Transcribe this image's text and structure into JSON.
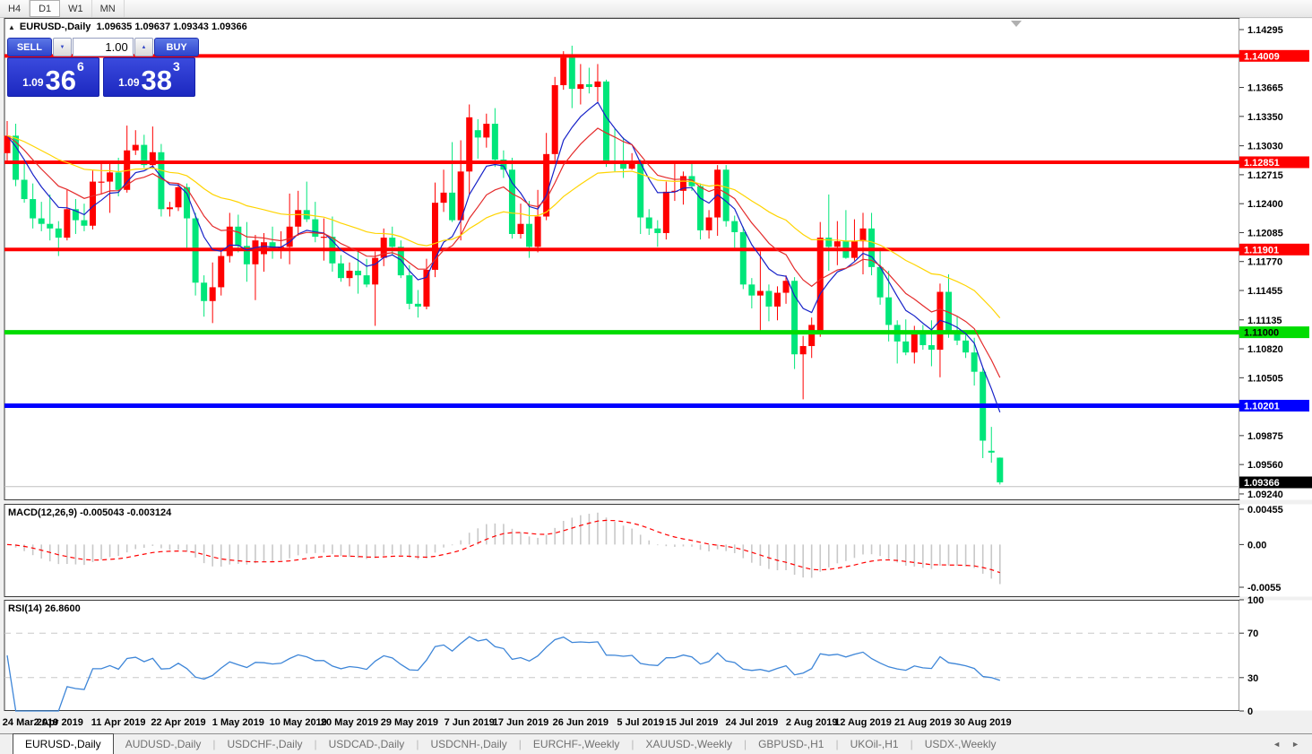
{
  "toolbar": {
    "buttons": [
      {
        "label": "H4",
        "active": false
      },
      {
        "label": "D1",
        "active": true
      },
      {
        "label": "W1",
        "active": false
      },
      {
        "label": "MN",
        "active": false
      }
    ]
  },
  "chart_header": {
    "collapse_icon": "▲",
    "title": "EURUSD-,Daily  1.09635 1.09637 1.09343 1.09366"
  },
  "trade_panel": {
    "sell_label": "SELL",
    "buy_label": "BUY",
    "volume": "1.00",
    "volume_down_glyph": "▼",
    "volume_up_glyph": "▲",
    "sell_price": {
      "big": "1.09",
      "pips": "36",
      "pipette": "6"
    },
    "buy_price": {
      "big": "1.09",
      "pips": "38",
      "pipette": "3"
    }
  },
  "indicators": {
    "macd_label": "MACD(12,26,9) -0.005043 -0.003124",
    "rsi_label": "RSI(14) 26.8600"
  },
  "tabs": {
    "items": [
      {
        "label": "EURUSD-,Daily",
        "active": true
      },
      {
        "label": "AUDUSD-,Daily",
        "active": false
      },
      {
        "label": "USDCHF-,Daily",
        "active": false
      },
      {
        "label": "USDCAD-,Daily",
        "active": false
      },
      {
        "label": "USDCNH-,Daily",
        "active": false
      },
      {
        "label": "EURCHF-,Weekly",
        "active": false
      },
      {
        "label": "XAUUSD-,Weekly",
        "active": false
      },
      {
        "label": "GBPUSD-,H1",
        "active": false
      },
      {
        "label": "UKOil-,H1",
        "active": false
      },
      {
        "label": "USDX-,Weekly",
        "active": false
      }
    ],
    "nav_left": "◄",
    "nav_right": "►"
  },
  "chart_data": {
    "type": "candlestick",
    "symbol": "EURUSD-",
    "period": "Daily",
    "title": "EURUSD-,Daily",
    "ohlc_current": {
      "open": 1.09635,
      "high": 1.09637,
      "low": 1.09343,
      "close": 1.09366
    },
    "price_axis": {
      "range": [
        1.09171,
        1.14422
      ],
      "current_price": "1.09366",
      "ticks": [
        "1.14295",
        "1.13665",
        "1.13350",
        "1.13030",
        "1.12715",
        "1.12400",
        "1.12085",
        "1.11770",
        "1.11455",
        "1.11135",
        "1.10820",
        "1.10505",
        "1.09875",
        "1.09560",
        "1.09240"
      ]
    },
    "hlines": [
      {
        "price": 1.14009,
        "label": "1.14009",
        "color": "#ff0000",
        "text": "#ffffff",
        "width": 4
      },
      {
        "price": 1.12851,
        "label": "1.12851",
        "color": "#ff0000",
        "text": "#ffffff",
        "width": 4
      },
      {
        "price": 1.11901,
        "label": "1.11901",
        "color": "#ff0000",
        "text": "#ffffff",
        "width": 4
      },
      {
        "price": 1.11,
        "label": "1.11000",
        "color": "#00dc00",
        "text": "#000000",
        "width": 5
      },
      {
        "price": 1.10201,
        "label": "1.10201",
        "color": "#0000ff",
        "text": "#ffffff",
        "width": 5
      },
      {
        "price": 1.0932,
        "label": null,
        "color": "#c0c0c0",
        "text": "#000000",
        "width": 1
      }
    ],
    "macd": {
      "params": [
        12,
        26,
        9
      ],
      "value": -0.005043,
      "signal": -0.003124,
      "ticks": [
        "0.00455",
        "0.00",
        "-0.0055"
      ],
      "range": [
        -0.00677,
        0.00524
      ]
    },
    "rsi": {
      "period": 14,
      "value": 26.86,
      "ticks": [
        "100",
        "70",
        "30",
        "0"
      ],
      "levels": [
        70,
        30
      ],
      "range": [
        0,
        100
      ]
    },
    "ma_lines": [
      {
        "period": 7,
        "color": "#1722c8"
      },
      {
        "period": 13,
        "color": "#e42b2b"
      },
      {
        "period": 34,
        "color": "#ffd400"
      }
    ],
    "colors": {
      "bull": "#ff0000",
      "bear": "#00e67a",
      "macd_bar": "#c8c8c8",
      "macd_signal": "#ff0000",
      "rsi_line": "#3e86d8",
      "level_dash": "#c8c8c8",
      "pane_border": "#3a3a3a"
    },
    "date_axis": [
      {
        "label": "24 Mar 2019",
        "i": 0
      },
      {
        "label": "2 Apr 2019",
        "i": 6
      },
      {
        "label": "11 Apr 2019",
        "i": 13
      },
      {
        "label": "22 Apr 2019",
        "i": 20
      },
      {
        "label": "1 May 2019",
        "i": 27
      },
      {
        "label": "10 May 2019",
        "i": 34
      },
      {
        "label": "20 May 2019",
        "i": 40
      },
      {
        "label": "29 May 2019",
        "i": 47
      },
      {
        "label": "7 Jun 2019",
        "i": 54
      },
      {
        "label": "17 Jun 2019",
        "i": 60
      },
      {
        "label": "26 Jun 2019",
        "i": 67
      },
      {
        "label": "5 Jul 2019",
        "i": 74
      },
      {
        "label": "15 Jul 2019",
        "i": 80
      },
      {
        "label": "24 Jul 2019",
        "i": 87
      },
      {
        "label": "2 Aug 2019",
        "i": 94
      },
      {
        "label": "12 Aug 2019",
        "i": 100
      },
      {
        "label": "21 Aug 2019",
        "i": 107
      },
      {
        "label": "30 Aug 2019",
        "i": 114
      }
    ],
    "candles": [
      [
        1.1295,
        1.133,
        1.1286,
        1.1314
      ],
      [
        1.1314,
        1.1327,
        1.1259,
        1.1266
      ],
      [
        1.1266,
        1.1288,
        1.1241,
        1.1245
      ],
      [
        1.1245,
        1.1262,
        1.1213,
        1.1224
      ],
      [
        1.1224,
        1.1242,
        1.121,
        1.1218
      ],
      [
        1.1218,
        1.125,
        1.12,
        1.1213
      ],
      [
        1.1213,
        1.1221,
        1.1183,
        1.1203
      ],
      [
        1.1203,
        1.1255,
        1.12,
        1.1234
      ],
      [
        1.1234,
        1.1245,
        1.1207,
        1.1222
      ],
      [
        1.1222,
        1.124,
        1.121,
        1.1216
      ],
      [
        1.1216,
        1.1276,
        1.1212,
        1.1264
      ],
      [
        1.1264,
        1.1285,
        1.125,
        1.1264
      ],
      [
        1.1264,
        1.1287,
        1.123,
        1.1274
      ],
      [
        1.1274,
        1.129,
        1.1248,
        1.1255
      ],
      [
        1.1255,
        1.1325,
        1.1252,
        1.1298
      ],
      [
        1.1298,
        1.132,
        1.1293,
        1.1304
      ],
      [
        1.1304,
        1.1315,
        1.1279,
        1.1282
      ],
      [
        1.1282,
        1.1324,
        1.1278,
        1.1296
      ],
      [
        1.1296,
        1.1305,
        1.1226,
        1.1234
      ],
      [
        1.1234,
        1.1242,
        1.1226,
        1.1236
      ],
      [
        1.1236,
        1.1262,
        1.1232,
        1.1258
      ],
      [
        1.1258,
        1.1262,
        1.1192,
        1.1224
      ],
      [
        1.1224,
        1.123,
        1.114,
        1.1154
      ],
      [
        1.1154,
        1.1162,
        1.1117,
        1.1134
      ],
      [
        1.1134,
        1.1176,
        1.111,
        1.1149
      ],
      [
        1.1149,
        1.119,
        1.114,
        1.1183
      ],
      [
        1.1183,
        1.123,
        1.1176,
        1.1215
      ],
      [
        1.1215,
        1.1228,
        1.1187,
        1.1194
      ],
      [
        1.1194,
        1.122,
        1.1155,
        1.1174
      ],
      [
        1.1174,
        1.1206,
        1.1135,
        1.12
      ],
      [
        1.1185,
        1.1208,
        1.1166,
        1.1198
      ],
      [
        1.1198,
        1.1215,
        1.118,
        1.119
      ],
      [
        1.119,
        1.121,
        1.118,
        1.1193
      ],
      [
        1.1193,
        1.1251,
        1.1174,
        1.1215
      ],
      [
        1.1215,
        1.1254,
        1.1205,
        1.1233
      ],
      [
        1.1233,
        1.1264,
        1.122,
        1.1223
      ],
      [
        1.1223,
        1.1242,
        1.1198,
        1.1204
      ],
      [
        1.1204,
        1.1224,
        1.1178,
        1.1204
      ],
      [
        1.1204,
        1.1226,
        1.1166,
        1.1175
      ],
      [
        1.1175,
        1.1184,
        1.1155,
        1.1159
      ],
      [
        1.1159,
        1.1176,
        1.115,
        1.1167
      ],
      [
        1.1167,
        1.1188,
        1.1142,
        1.1162
      ],
      [
        1.1162,
        1.118,
        1.1149,
        1.1152
      ],
      [
        1.1152,
        1.1188,
        1.1107,
        1.1181
      ],
      [
        1.1181,
        1.1213,
        1.1172,
        1.1203
      ],
      [
        1.1203,
        1.1215,
        1.1184,
        1.1193
      ],
      [
        1.1193,
        1.12,
        1.1159,
        1.1162
      ],
      [
        1.1162,
        1.1173,
        1.1125,
        1.1131
      ],
      [
        1.1131,
        1.1146,
        1.1116,
        1.1128
      ],
      [
        1.1128,
        1.118,
        1.1125,
        1.1168
      ],
      [
        1.1168,
        1.1263,
        1.116,
        1.1241
      ],
      [
        1.1241,
        1.1277,
        1.1231,
        1.1252
      ],
      [
        1.1252,
        1.1307,
        1.122,
        1.1222
      ],
      [
        1.1222,
        1.1309,
        1.12,
        1.1275
      ],
      [
        1.1275,
        1.1348,
        1.125,
        1.1334
      ],
      [
        1.132,
        1.1332,
        1.1289,
        1.1312
      ],
      [
        1.1312,
        1.1338,
        1.1301,
        1.1327
      ],
      [
        1.1327,
        1.1344,
        1.128,
        1.1288
      ],
      [
        1.1288,
        1.1298,
        1.1268,
        1.1277
      ],
      [
        1.1277,
        1.129,
        1.1202,
        1.1207
      ],
      [
        1.1207,
        1.124,
        1.1202,
        1.1218
      ],
      [
        1.1218,
        1.1243,
        1.1181,
        1.1193
      ],
      [
        1.1193,
        1.1255,
        1.1187,
        1.1226
      ],
      [
        1.1226,
        1.1317,
        1.1222,
        1.1294
      ],
      [
        1.1294,
        1.1378,
        1.1285,
        1.1369
      ],
      [
        1.1369,
        1.1406,
        1.1364,
        1.1399
      ],
      [
        1.1399,
        1.1412,
        1.1344,
        1.1365
      ],
      [
        1.1365,
        1.1392,
        1.1348,
        1.137
      ],
      [
        1.137,
        1.1388,
        1.136,
        1.1367
      ],
      [
        1.1367,
        1.1392,
        1.1351,
        1.1373
      ],
      [
        1.1373,
        1.1375,
        1.128,
        1.1286
      ],
      [
        1.1286,
        1.1322,
        1.1275,
        1.1285
      ],
      [
        1.1285,
        1.1312,
        1.1268,
        1.1278
      ],
      [
        1.1278,
        1.1295,
        1.1277,
        1.1284
      ],
      [
        1.1284,
        1.1288,
        1.1207,
        1.1225
      ],
      [
        1.1225,
        1.1234,
        1.1206,
        1.1213
      ],
      [
        1.1213,
        1.1222,
        1.1193,
        1.1208
      ],
      [
        1.1208,
        1.1264,
        1.1201,
        1.1253
      ],
      [
        1.1253,
        1.1286,
        1.1243,
        1.1254
      ],
      [
        1.1254,
        1.1275,
        1.1239,
        1.127
      ],
      [
        1.127,
        1.1284,
        1.1254,
        1.1259
      ],
      [
        1.1259,
        1.1262,
        1.1201,
        1.1211
      ],
      [
        1.1211,
        1.1233,
        1.1202,
        1.1225
      ],
      [
        1.1225,
        1.1282,
        1.1205,
        1.1277
      ],
      [
        1.1277,
        1.1282,
        1.1215,
        1.1221
      ],
      [
        1.1221,
        1.1227,
        1.1192,
        1.1209
      ],
      [
        1.1209,
        1.1215,
        1.1147,
        1.1152
      ],
      [
        1.1152,
        1.1159,
        1.1126,
        1.114
      ],
      [
        1.114,
        1.1188,
        1.1101,
        1.1145
      ],
      [
        1.1145,
        1.1152,
        1.1112,
        1.1128
      ],
      [
        1.1128,
        1.115,
        1.1113,
        1.1143
      ],
      [
        1.1143,
        1.1162,
        1.1131,
        1.1156
      ],
      [
        1.1156,
        1.116,
        1.106,
        1.1076
      ],
      [
        1.1076,
        1.1096,
        1.1027,
        1.1085
      ],
      [
        1.1085,
        1.1116,
        1.1072,
        1.1108
      ],
      [
        1.1102,
        1.122,
        1.1095,
        1.1203
      ],
      [
        1.1203,
        1.125,
        1.1167,
        1.1193
      ],
      [
        1.1193,
        1.1221,
        1.1173,
        1.1199
      ],
      [
        1.1199,
        1.1233,
        1.118,
        1.1181
      ],
      [
        1.1181,
        1.1223,
        1.1178,
        1.1199
      ],
      [
        1.1199,
        1.123,
        1.1163,
        1.1213
      ],
      [
        1.1213,
        1.123,
        1.1162,
        1.1171
      ],
      [
        1.1171,
        1.1192,
        1.113,
        1.1138
      ],
      [
        1.1138,
        1.1167,
        1.109,
        1.1108
      ],
      [
        1.1108,
        1.1113,
        1.1066,
        1.109
      ],
      [
        1.109,
        1.1114,
        1.1075,
        1.1078
      ],
      [
        1.1078,
        1.1107,
        1.1066,
        1.11
      ],
      [
        1.11,
        1.1108,
        1.1081,
        1.1086
      ],
      [
        1.1086,
        1.1113,
        1.1063,
        1.1081
      ],
      [
        1.1081,
        1.1153,
        1.1051,
        1.1144
      ],
      [
        1.1144,
        1.1163,
        1.1094,
        1.1101
      ],
      [
        1.1101,
        1.1117,
        1.1086,
        1.1091
      ],
      [
        1.1091,
        1.1098,
        1.1072,
        1.1078
      ],
      [
        1.1078,
        1.1094,
        1.1042,
        1.1057
      ],
      [
        1.1057,
        1.1061,
        1.0963,
        1.0982
      ],
      [
        1.0971,
        1.0997,
        1.0958,
        1.0969
      ],
      [
        1.09635,
        1.09637,
        1.09343,
        1.09366
      ]
    ]
  }
}
